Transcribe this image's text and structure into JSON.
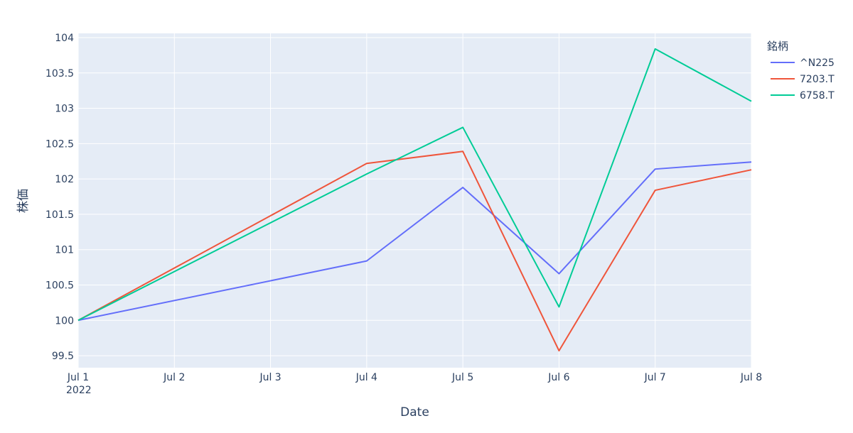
{
  "chart_data": {
    "type": "line",
    "xlabel": "Date",
    "ylabel": "株価",
    "x": [
      "2022-07-01",
      "2022-07-04",
      "2022-07-05",
      "2022-07-06",
      "2022-07-07",
      "2022-07-08"
    ],
    "x_tick_labels": [
      "Jul 1",
      "Jul 2",
      "Jul 3",
      "Jul 4",
      "Jul 5",
      "Jul 6",
      "Jul 7",
      "Jul 8"
    ],
    "x_tick_dates": [
      "2022-07-01",
      "2022-07-02",
      "2022-07-03",
      "2022-07-04",
      "2022-07-05",
      "2022-07-06",
      "2022-07-07",
      "2022-07-08"
    ],
    "x_year_label": "2022",
    "xlim": [
      "2022-07-01",
      "2022-07-08"
    ],
    "ylim": [
      99.33,
      104.06
    ],
    "y_ticks": [
      99.5,
      100,
      100.5,
      101,
      101.5,
      102,
      102.5,
      103,
      103.5,
      104
    ],
    "y_tick_labels": [
      "99.5",
      "100",
      "100.5",
      "101",
      "101.5",
      "102",
      "102.5",
      "103",
      "103.5",
      "104"
    ],
    "grid": true,
    "legend_title": "銘柄",
    "legend_position": "top-right",
    "series": [
      {
        "name": "^N225",
        "color": "#636efa",
        "values": [
          100.0,
          100.84,
          101.88,
          100.66,
          102.14,
          102.24
        ]
      },
      {
        "name": "7203.T",
        "color": "#ef553b",
        "values": [
          100.0,
          102.22,
          102.39,
          99.57,
          101.84,
          102.13
        ]
      },
      {
        "name": "6758.T",
        "color": "#00cc96",
        "values": [
          100.0,
          102.07,
          102.73,
          100.19,
          103.84,
          103.1
        ]
      }
    ]
  }
}
